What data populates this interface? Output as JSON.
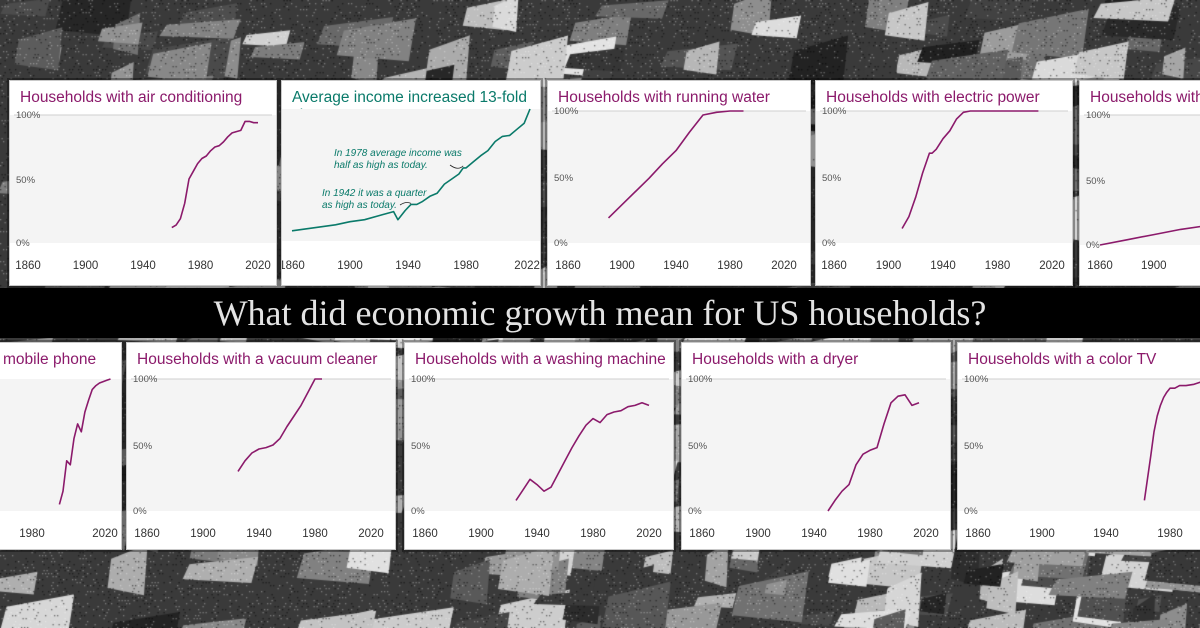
{
  "headline": "What did economic growth mean for US households?",
  "colors": {
    "series": "#8b1a6b",
    "income": "#0a7a6a",
    "banner": "#000000"
  },
  "chart_data": [
    {
      "type": "line",
      "title": "Households with air conditioning",
      "x": [
        1960,
        1963,
        1966,
        1969,
        1972,
        1975,
        1978,
        1981,
        1984,
        1987,
        1990,
        1993,
        1996,
        1999,
        2002,
        2005,
        2008,
        2011,
        2014,
        2017,
        2020
      ],
      "values": [
        12,
        14,
        19,
        31,
        50,
        56,
        62,
        66,
        68,
        72,
        75,
        76,
        79,
        83,
        86,
        87,
        88,
        95,
        95,
        94,
        94
      ],
      "xticks": [
        "1860",
        "1900",
        "1940",
        "1980",
        "2020"
      ],
      "yticks": [
        "100%",
        "50%",
        "0%"
      ],
      "ylim": [
        0,
        100
      ]
    },
    {
      "type": "line",
      "title": "Average income increased 13-fold since 1860",
      "x": [
        1860,
        1870,
        1880,
        1890,
        1900,
        1910,
        1920,
        1925,
        1930,
        1933,
        1938,
        1942,
        1946,
        1950,
        1955,
        1960,
        1965,
        1970,
        1975,
        1978,
        1980,
        1985,
        1990,
        1995,
        2000,
        2005,
        2010,
        2015,
        2020,
        2024
      ],
      "values": [
        1.0,
        1.2,
        1.4,
        1.6,
        1.9,
        2.1,
        2.5,
        2.7,
        2.9,
        2.1,
        3.0,
        3.6,
        3.6,
        3.9,
        4.4,
        4.7,
        5.6,
        6.1,
        6.6,
        7.2,
        7.2,
        7.8,
        8.4,
        8.9,
        9.8,
        10.3,
        10.4,
        11.0,
        11.6,
        13.0
      ],
      "xticks": [
        "1860",
        "1900",
        "1940",
        "1980",
        "2022"
      ],
      "annotations": [
        "In 1978 average income was half as high as today.",
        "In 1942 it was a quarter as high as today."
      ]
    },
    {
      "type": "line",
      "title": "Households with running water",
      "x": [
        1890,
        1900,
        1910,
        1920,
        1930,
        1940,
        1950,
        1960,
        1970,
        1980,
        1990
      ],
      "values": [
        19,
        29,
        39,
        49,
        60,
        70,
        84,
        97,
        99,
        100,
        100
      ],
      "xticks": [
        "1860",
        "1900",
        "1940",
        "1980",
        "2020"
      ],
      "yticks": [
        "100%",
        "50%",
        "0%"
      ],
      "ylim": [
        0,
        100
      ]
    },
    {
      "type": "line",
      "title": "Households with electric power",
      "x": [
        1910,
        1915,
        1920,
        1925,
        1930,
        1932,
        1935,
        1940,
        1945,
        1950,
        1955,
        1960,
        1970,
        1980,
        1990,
        2000,
        2010
      ],
      "values": [
        11,
        20,
        35,
        53,
        68,
        68,
        71,
        79,
        85,
        94,
        99,
        100,
        100,
        100,
        100,
        100,
        100
      ],
      "xticks": [
        "1860",
        "1900",
        "1940",
        "1980",
        "2020"
      ],
      "yticks": [
        "100%",
        "50%",
        "0%"
      ],
      "ylim": [
        0,
        100
      ]
    },
    {
      "type": "line",
      "title": "Households with",
      "x": [
        1860,
        1880,
        1900,
        1920,
        1940,
        1960,
        1980,
        1990,
        2000
      ],
      "values": [
        0,
        4,
        8,
        12,
        15,
        16,
        20,
        40,
        55
      ],
      "xticks": [
        "1860",
        "1900"
      ],
      "yticks": [
        "100%",
        "50%",
        "0%"
      ],
      "ylim": [
        0,
        100
      ]
    },
    {
      "type": "line",
      "title": "mobile phone",
      "x": [
        1995,
        1997,
        1999,
        2001,
        2003,
        2005,
        2007,
        2009,
        2011,
        2013,
        2015,
        2017,
        2019,
        2021,
        2023
      ],
      "values": [
        5,
        15,
        38,
        35,
        55,
        66,
        60,
        75,
        84,
        92,
        95,
        97,
        98,
        99,
        100
      ],
      "xticks": [
        "1980",
        "2020"
      ]
    },
    {
      "type": "line",
      "title": "Households with a vacuum cleaner",
      "x": [
        1925,
        1930,
        1935,
        1940,
        1945,
        1950,
        1955,
        1960,
        1965,
        1970,
        1975,
        1980,
        1985
      ],
      "values": [
        30,
        38,
        44,
        47,
        48,
        50,
        55,
        64,
        72,
        80,
        90,
        100,
        100
      ],
      "xticks": [
        "1860",
        "1900",
        "1940",
        "1980",
        "2020"
      ],
      "yticks": [
        "100%",
        "50%",
        "0%"
      ],
      "ylim": [
        0,
        100
      ]
    },
    {
      "type": "line",
      "title": "Households with a washing machine",
      "x": [
        1925,
        1930,
        1935,
        1940,
        1945,
        1950,
        1955,
        1960,
        1965,
        1970,
        1975,
        1980,
        1985,
        1990,
        1995,
        2000,
        2005,
        2010,
        2015,
        2020
      ],
      "values": [
        8,
        16,
        24,
        20,
        15,
        18,
        28,
        38,
        48,
        57,
        65,
        70,
        67,
        73,
        75,
        76,
        79,
        80,
        82,
        80
      ],
      "xticks": [
        "1860",
        "1900",
        "1940",
        "1980",
        "2020"
      ],
      "yticks": [
        "100%",
        "50%",
        "0%"
      ],
      "ylim": [
        0,
        100
      ]
    },
    {
      "type": "line",
      "title": "Households with a dryer",
      "x": [
        1950,
        1955,
        1960,
        1965,
        1970,
        1975,
        1980,
        1985,
        1990,
        1995,
        2000,
        2005,
        2010,
        2015
      ],
      "values": [
        0,
        8,
        15,
        20,
        35,
        43,
        46,
        48,
        66,
        82,
        87,
        88,
        80,
        82
      ],
      "xticks": [
        "1860",
        "1900",
        "1940",
        "1980",
        "2020"
      ],
      "yticks": [
        "100%",
        "50%",
        "0%"
      ],
      "ylim": [
        0,
        100
      ]
    },
    {
      "type": "line",
      "title": "Households with a color TV",
      "x": [
        1964,
        1966,
        1968,
        1970,
        1972,
        1974,
        1976,
        1978,
        1980,
        1983,
        1986,
        1990,
        1995,
        2000,
        2005
      ],
      "values": [
        8,
        25,
        42,
        60,
        72,
        80,
        86,
        90,
        93,
        93,
        95,
        95,
        96,
        98,
        97
      ],
      "xticks": [
        "1860",
        "1900",
        "1940",
        "1980"
      ],
      "yticks": [
        "100%",
        "50%",
        "0%"
      ],
      "ylim": [
        0,
        100
      ]
    }
  ]
}
